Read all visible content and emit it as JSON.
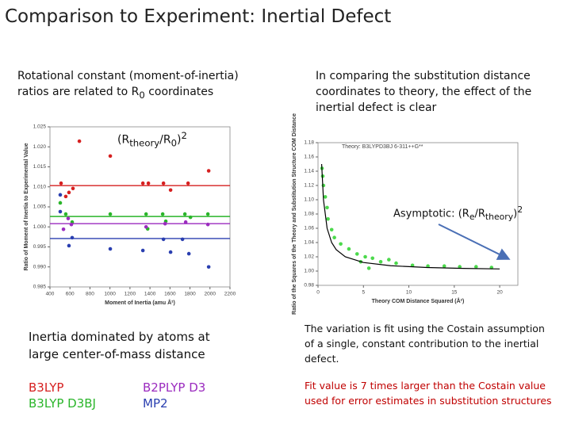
{
  "title": "Comparison to Experiment: Inertial Defect",
  "left_text": [
    "Rotational constant (moment-of-inertia) ratios are related to R",
    "0",
    " coordinates"
  ],
  "ratio_label": [
    "(R",
    "theory",
    "/R",
    "0",
    ")",
    "2"
  ],
  "right_text": "In comparing the substitution distance coordinates to theory, the effect of the inertial defect is clear",
  "asymptotic_label": [
    "Asymptotic: (R",
    "e",
    "/R",
    "theory",
    ")",
    "2"
  ],
  "bottom_left_text": "Inertia dominated by atoms at large center-of-mass distance",
  "bottom_right_text": "The variation is fit using the Costain assumption of a single, constant contribution to the inertial defect.",
  "bottom_right_note": "Fit value is 7 times larger than the Costain value used for error estimates in substitution structures",
  "chart_data": [
    {
      "type": "scatter",
      "xlabel": "Moment of Inertia (amu Å²)",
      "ylabel": "Ratio of Moment of Inertia to Experimental Value",
      "xlim": [
        400,
        2200
      ],
      "xticks": [
        400,
        600,
        800,
        1000,
        1200,
        1400,
        1600,
        1800,
        2000,
        2200
      ],
      "ylim": [
        0.985,
        1.025
      ],
      "yticks": [
        0.985,
        {
          "value": 0.99,
          "label": "0.990"
        },
        0.995,
        {
          "value": 1,
          "label": "1.000"
        },
        1.005,
        {
          "value": 1.01,
          "label": "1.010"
        },
        1.015,
        {
          "value": 1.02,
          "label": "1.020"
        },
        1.025
      ],
      "series": [
        {
          "name": "B3LYP",
          "color": "#d62020",
          "mean": 1.0103,
          "x": [
            694,
            1003,
            1329,
            1384,
            1535,
            1781,
            1987,
            511,
            590,
            630,
            558,
            1606
          ],
          "values": [
            1.0214,
            1.0177,
            1.0109,
            1.0109,
            1.0109,
            1.0109,
            1.014,
            1.0109,
            1.0086,
            1.0096,
            1.0076,
            1.0092
          ]
        },
        {
          "name": "B3LYP D3BJ",
          "color": "#2ab52a",
          "mean": 1.0026,
          "x": [
            503,
            622,
            1003,
            1361,
            1527,
            1749,
            1979,
            558,
            1558,
            1377,
            1805
          ],
          "values": [
            1.006,
            1.0012,
            1.0032,
            1.0032,
            1.0032,
            1.0032,
            1.0032,
            1.0032,
            1.0014,
            0.9995,
            1.0024
          ]
        },
        {
          "name": "B2PLYP D3",
          "color": "#9b2bbf",
          "mean": 1.0008,
          "x": [
            535,
            582,
            1361,
            1551,
            1757,
            1979,
            614
          ],
          "values": [
            0.9994,
            1.0021,
            1.0,
            1.0008,
            1.0012,
            1.0006,
            1.0006
          ]
        },
        {
          "name": "MP2",
          "color": "#2a3fb0",
          "mean": 0.9971,
          "x": [
            503,
            503,
            590,
            622,
            1003,
            1329,
            1535,
            1606,
            1725,
            1789,
            1987
          ],
          "values": [
            1.008,
            1.0038,
            0.9953,
            0.9973,
            0.9945,
            0.9941,
            0.9969,
            0.9937,
            0.9969,
            0.9933,
            0.99
          ]
        }
      ]
    },
    {
      "type": "scatter",
      "title": "Theory: B3LYPD3BJ 6-311++G**",
      "xlabel": "Theory COM Distance Squared (Å²)",
      "ylabel": "Ratio of the Squares of the Theory and Substitution Structure COM Distance",
      "xlim": [
        0,
        22
      ],
      "xticks": [
        0,
        5,
        10,
        15,
        20
      ],
      "ylim": [
        0.98,
        1.18
      ],
      "yticks": [
        0.98,
        {
          "value": 1,
          "label": "1.00"
        },
        1.02,
        1.04,
        1.06,
        1.08,
        {
          "value": 1.1,
          "label": "1.10"
        },
        1.12,
        1.14,
        1.16,
        1.18
      ],
      "series": [
        {
          "color": "#4cd94c",
          "mode": "points",
          "x": [
            0.44,
            0.52,
            0.6,
            0.8,
            1.0,
            1.1,
            1.5,
            1.8,
            2.5,
            3.4,
            4.3,
            4.7,
            5.2,
            5.6,
            6.0,
            6.9,
            7.8,
            8.6,
            10.4,
            12.1,
            13.9,
            15.6,
            17.4,
            19.1
          ],
          "values": [
            1.144,
            1.133,
            1.12,
            1.104,
            1.089,
            1.073,
            1.058,
            1.047,
            1.038,
            1.031,
            1.024,
            1.013,
            1.02,
            1.004,
            1.018,
            1.013,
            1.016,
            1.011,
            1.008,
            1.007,
            1.007,
            1.006,
            1.006,
            1.005
          ]
        },
        {
          "color": "#000000",
          "mode": "line",
          "x": [
            0.4,
            0.6,
            1,
            1.5,
            2,
            3,
            5,
            8,
            12,
            16,
            20
          ],
          "values": [
            1.15,
            1.1,
            1.06,
            1.04,
            1.03,
            1.02,
            1.012,
            1.0075,
            1.005,
            1.00375,
            1.003
          ]
        }
      ]
    }
  ]
}
